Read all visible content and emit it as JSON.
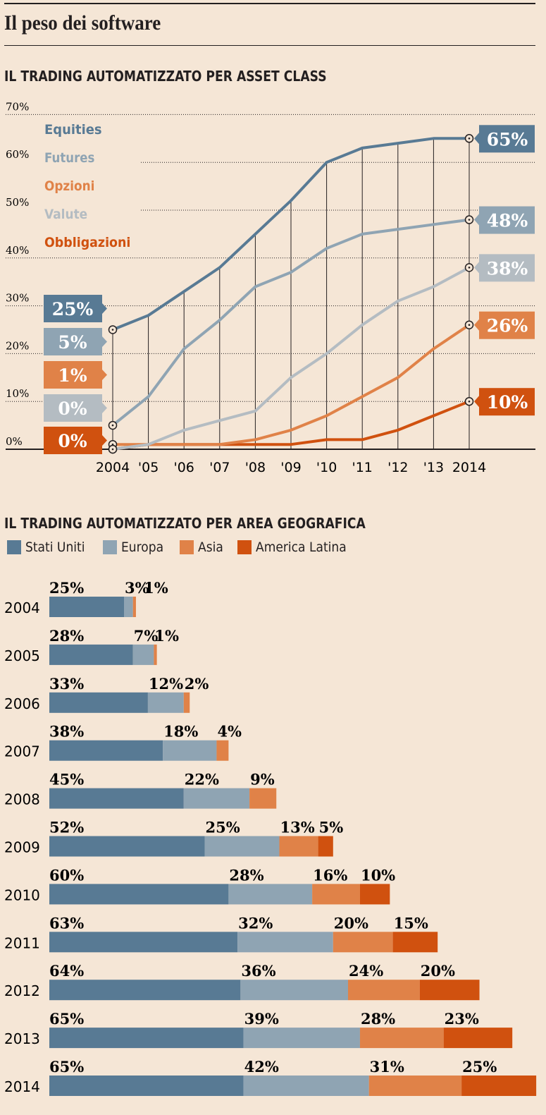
{
  "page_title": "Il peso dei software",
  "colors": {
    "equities": "#587a94",
    "futures": "#8fa4b3",
    "opzioni": "#e08248",
    "valute": "#b4bcc2",
    "obbligazioni": "#d0510f"
  },
  "chart_data": [
    {
      "type": "line",
      "title": "IL TRADING AUTOMATIZZATO PER ASSET CLASS",
      "x_tick_labels": [
        "2004",
        "'05",
        "'06",
        "'07",
        "'08",
        "'09",
        "'10",
        "'11",
        "'12",
        "'13",
        "2014"
      ],
      "x": [
        2004,
        2005,
        2006,
        2007,
        2008,
        2009,
        2010,
        2011,
        2012,
        2013,
        2014
      ],
      "y_tick_labels": [
        "0%",
        "10%",
        "20%",
        "30%",
        "40%",
        "50%",
        "60%",
        "70%"
      ],
      "ylim": [
        0,
        70
      ],
      "grid": "horizontal dotted, vertical solid",
      "legend_position": "top-left",
      "series": [
        {
          "name": "Equities",
          "color_key": "equities",
          "values": [
            25,
            28,
            33,
            38,
            45,
            52,
            60,
            63,
            64,
            65,
            65
          ],
          "start_label": "25%",
          "end_label": "65%"
        },
        {
          "name": "Futures",
          "color_key": "futures",
          "values": [
            5,
            11,
            21,
            27,
            34,
            37,
            42,
            45,
            46,
            47,
            48
          ],
          "start_label": "5%",
          "end_label": "48%"
        },
        {
          "name": "Opzioni",
          "color_key": "opzioni",
          "values": [
            1,
            1,
            1,
            1,
            2,
            4,
            7,
            11,
            15,
            21,
            26
          ],
          "start_label": "1%",
          "end_label": "26%"
        },
        {
          "name": "Valute",
          "color_key": "valute",
          "values": [
            0,
            1,
            4,
            6,
            8,
            15,
            20,
            26,
            31,
            34,
            38
          ],
          "start_label": "0%",
          "end_label": "38%"
        },
        {
          "name": "Obbligazioni",
          "color_key": "obbligazioni",
          "values": [
            0,
            1,
            1,
            1,
            1,
            1,
            2,
            2,
            4,
            7,
            10
          ],
          "start_label": "0%",
          "end_label": "10%"
        }
      ]
    },
    {
      "type": "bar",
      "orientation": "horizontal",
      "stacked": true,
      "title": "IL TRADING AUTOMATIZZATO PER AREA GEOGRAFICA",
      "categories": [
        "2004",
        "2005",
        "2006",
        "2007",
        "2008",
        "2009",
        "2010",
        "2011",
        "2012",
        "2013",
        "2014"
      ],
      "legend_position": "top",
      "series": [
        {
          "name": "Stati Uniti",
          "color_key": "equities",
          "values": [
            25,
            28,
            33,
            38,
            45,
            52,
            60,
            63,
            64,
            65,
            65
          ]
        },
        {
          "name": "Europa",
          "color_key": "futures",
          "values": [
            3,
            7,
            12,
            18,
            22,
            25,
            28,
            32,
            36,
            39,
            42
          ]
        },
        {
          "name": "Asia",
          "color_key": "opzioni",
          "values": [
            1,
            1,
            2,
            4,
            9,
            13,
            16,
            20,
            24,
            28,
            31
          ]
        },
        {
          "name": "America Latina",
          "color_key": "obbligazioni",
          "values": [
            0,
            0,
            0,
            0,
            0,
            5,
            10,
            15,
            20,
            23,
            25
          ]
        }
      ]
    }
  ]
}
